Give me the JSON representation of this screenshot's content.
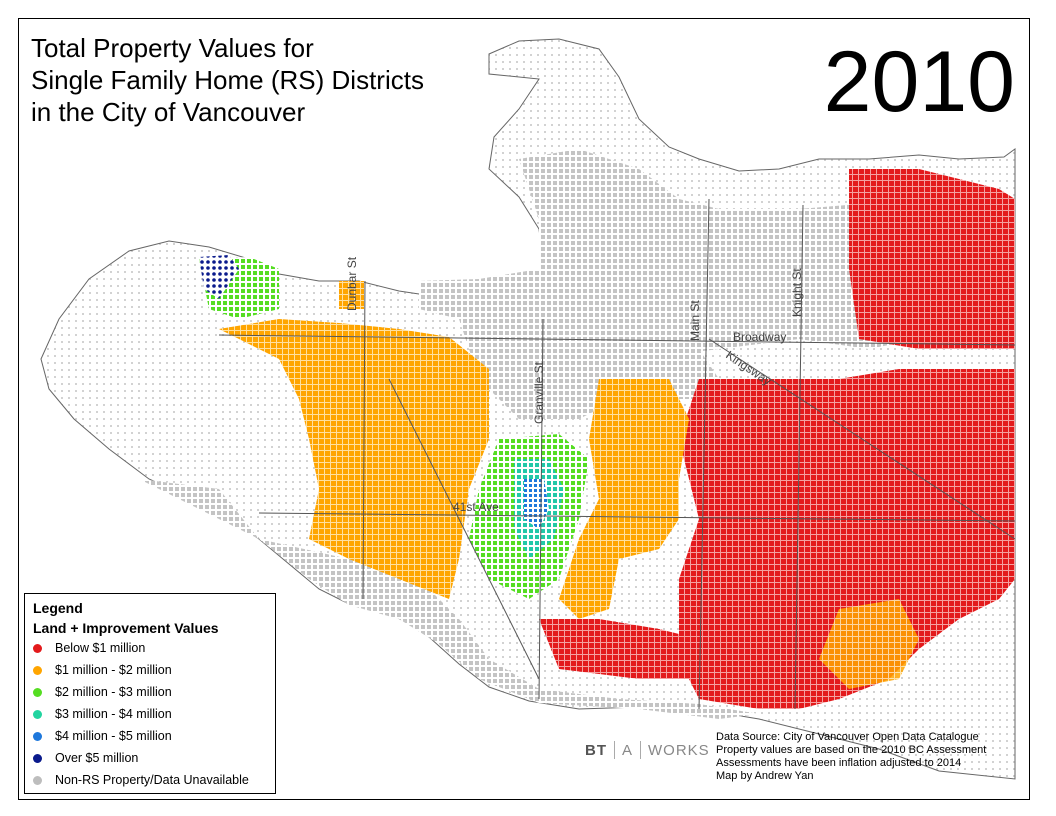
{
  "title": {
    "line1": "Total Property Values for",
    "line2": "Single Family Home (RS) Districts",
    "line3": "in the City of Vancouver"
  },
  "year": "2010",
  "streets": {
    "dunbar": "Dunbar St",
    "granville": "Granville St",
    "main": "Main St",
    "knight": "Knight St",
    "broadway": "Broadway",
    "kingsway": "Kingsway",
    "ave41": "41st Ave"
  },
  "legend": {
    "title": "Legend",
    "subtitle": "Land + Improvement Values",
    "items": [
      {
        "label": "Below $1 million",
        "color": "#e31a1c"
      },
      {
        "label": "$1 million - $2 million",
        "color": "#ffa500"
      },
      {
        "label": "$2 million - $3 million",
        "color": "#55dd22"
      },
      {
        "label": "$3 million - $4 million",
        "color": "#22d4a0"
      },
      {
        "label": "$4 million - $5 million",
        "color": "#1e78dc"
      },
      {
        "label": "Over $5 million",
        "color": "#0a1a8c"
      },
      {
        "label": "Non-RS Property/Data Unavailable",
        "color": "#bdbdbd"
      }
    ]
  },
  "logo": {
    "part1": "BT",
    "part2": "A",
    "part3": "WORKS"
  },
  "credits": {
    "line1": "Data Source: City of Vancouver Open Data Catalogue",
    "line2": "Property values are based on the 2010 BC Assessment",
    "line3": "Assessments have been inflation adjusted to 2014",
    "line4": "Map by Andrew Yan"
  }
}
